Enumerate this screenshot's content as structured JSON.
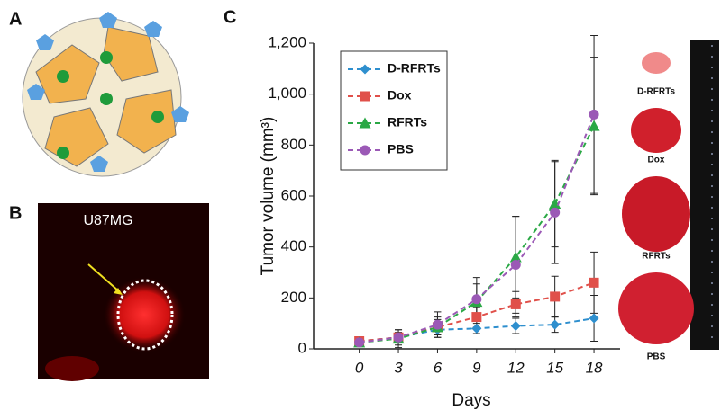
{
  "chart_data": {
    "type": "line",
    "x_label": "Days",
    "y_label": "Tumor volume (mm³)",
    "x": [
      0,
      3,
      6,
      9,
      12,
      15,
      18
    ],
    "xlim": [
      -3.5,
      20
    ],
    "xticks": [
      0,
      3,
      6,
      9,
      12,
      15,
      18
    ],
    "ylim": [
      0,
      1200
    ],
    "yticks": [
      0,
      200,
      400,
      600,
      800,
      {
        "value": 1000,
        "label": "1,000"
      },
      {
        "value": 1200,
        "label": "1,200"
      }
    ],
    "legend": "upper left",
    "series": [
      {
        "name": "D-RFRTs",
        "color": "#2e8fce",
        "marker": "diamond",
        "values": [
          30,
          45,
          75,
          80,
          90,
          95,
          120
        ],
        "errors": [
          5,
          15,
          20,
          20,
          30,
          30,
          90
        ]
      },
      {
        "name": "Dox",
        "color": "#e0504a",
        "marker": "square",
        "values": [
          30,
          45,
          85,
          125,
          175,
          205,
          260
        ],
        "errors": [
          5,
          20,
          30,
          40,
          50,
          80,
          120
        ]
      },
      {
        "name": "RFRTs",
        "color": "#2aa845",
        "marker": "triangle",
        "values": [
          25,
          40,
          85,
          185,
          360,
          570,
          875
        ],
        "errors": [
          5,
          35,
          40,
          70,
          160,
          170,
          270
        ]
      },
      {
        "name": "PBS",
        "color": "#9b59b6",
        "marker": "circle",
        "values": [
          25,
          45,
          95,
          195,
          330,
          535,
          920
        ],
        "errors": [
          5,
          30,
          50,
          85,
          190,
          200,
          310
        ]
      }
    ]
  },
  "panels": {
    "a": "A",
    "b": "B",
    "c": "C",
    "cell_line": "U87MG",
    "photos": [
      "D-RFRTs",
      "Dox",
      "RFRTs",
      "PBS"
    ]
  }
}
